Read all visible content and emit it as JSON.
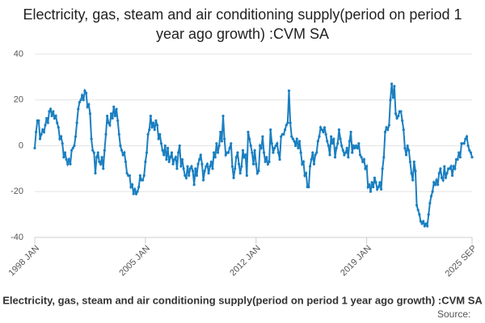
{
  "chart_data": {
    "type": "line",
    "title": "Electricity, gas, steam and air conditioning supply(period on period 1 year ago growth) :CVM SA",
    "source": "Source:",
    "categories": [
      "1998 JAN",
      null,
      null,
      null,
      null,
      null,
      null,
      null,
      null,
      null,
      null,
      null,
      null,
      null,
      null,
      null,
      null,
      null,
      null,
      null,
      null,
      null,
      null,
      null,
      null,
      null,
      null,
      null,
      null,
      null,
      null,
      null,
      null,
      null,
      null,
      null,
      null,
      null,
      null,
      null,
      null,
      null,
      null,
      null,
      null,
      null,
      null,
      null,
      null,
      null,
      null,
      null,
      null,
      null,
      null,
      null,
      null,
      null,
      null,
      null,
      null,
      null,
      null,
      null,
      null,
      null,
      null,
      null,
      null,
      null,
      null,
      null,
      null,
      null,
      null,
      null,
      null,
      null,
      null,
      null,
      null,
      null,
      null,
      null,
      "2005 JAN",
      null,
      null,
      null,
      null,
      null,
      null,
      null,
      null,
      null,
      null,
      null,
      null,
      null,
      null,
      null,
      null,
      null,
      null,
      null,
      null,
      null,
      null,
      null,
      null,
      null,
      null,
      null,
      null,
      null,
      null,
      null,
      null,
      null,
      null,
      null,
      null,
      null,
      null,
      null,
      null,
      null,
      null,
      null,
      null,
      null,
      null,
      null,
      null,
      null,
      null,
      null,
      null,
      null,
      null,
      null,
      null,
      null,
      null,
      null,
      null,
      null,
      null,
      null,
      null,
      null,
      null,
      null,
      null,
      null,
      null,
      null,
      null,
      null,
      null,
      null,
      null,
      null,
      null,
      null,
      null,
      null,
      null,
      null,
      "2012 JAN",
      null,
      null,
      null,
      null,
      null,
      null,
      null,
      null,
      null,
      null,
      null,
      null,
      null,
      null,
      null,
      null,
      null,
      null,
      null,
      null,
      null,
      null,
      null,
      null,
      null,
      null,
      null,
      null,
      null,
      null,
      null,
      null,
      null,
      null,
      null,
      null,
      null,
      null,
      null,
      null,
      null,
      null,
      null,
      null,
      null,
      null,
      null,
      null,
      null,
      null,
      null,
      null,
      null,
      null,
      null,
      null,
      null,
      null,
      null,
      null,
      null,
      null,
      null,
      null,
      null,
      null,
      null,
      null,
      null,
      null,
      null,
      null,
      null,
      null,
      null,
      null,
      null,
      null,
      null,
      null,
      null,
      null,
      null,
      "2019 JAN",
      null,
      null,
      null,
      null,
      null,
      null,
      null,
      null,
      null,
      null,
      null,
      null,
      null,
      null,
      null,
      null,
      null,
      null,
      null,
      null,
      null,
      null,
      null,
      null,
      null,
      null,
      null,
      null,
      null,
      null,
      null,
      null,
      null,
      null,
      null,
      null,
      null,
      null,
      null,
      null,
      null,
      null,
      null,
      null,
      null,
      null,
      null,
      null,
      null,
      null,
      null,
      null,
      null,
      null,
      null,
      null,
      null,
      null,
      null,
      null,
      null,
      null,
      null,
      null,
      null,
      null,
      null,
      null,
      null,
      null,
      null,
      null,
      null,
      null,
      null,
      null,
      null,
      null,
      null,
      "2025 SEP"
    ],
    "series": [
      {
        "name": "Electricity, gas, steam and air conditioning supply(period on period 1 year ago growth) :CVM SA",
        "color": "#1a7fc1",
        "values": [
          -1,
          6,
          11,
          11,
          3,
          5,
          7,
          6,
          9,
          12,
          10,
          15,
          16,
          13,
          15,
          12,
          13,
          10,
          8,
          3,
          4,
          1,
          -5,
          -3,
          -6,
          -8,
          -6,
          -8,
          -2,
          -1,
          0,
          4,
          10,
          16,
          19,
          20,
          22,
          20,
          24,
          23,
          17,
          18,
          14,
          3,
          -2,
          -3,
          -12,
          -5,
          -3,
          -7,
          -8,
          -5,
          -10,
          -2,
          5,
          13,
          10,
          9,
          14,
          12,
          17,
          13,
          16,
          11,
          5,
          0,
          -2,
          -4,
          -3,
          -7,
          -12,
          -13,
          -13,
          -18,
          -17,
          -21,
          -19,
          -21,
          -20,
          -18,
          -13,
          -15,
          -15,
          -13,
          -7,
          -3,
          5,
          7,
          13,
          8,
          10,
          7,
          11,
          9,
          3,
          5,
          1,
          -2,
          -4,
          0,
          -6,
          -1,
          -7,
          -5,
          -3,
          -8,
          -6,
          -5,
          -10,
          -3,
          0,
          -9,
          -6,
          -10,
          -13,
          -14,
          -9,
          -13,
          -10,
          -9,
          -11,
          -17,
          -10,
          -13,
          -8,
          -6,
          -4,
          -8,
          -15,
          -11,
          -9,
          -8,
          -12,
          -9,
          -7,
          -10,
          -3,
          -5,
          1,
          -3,
          0,
          6,
          2,
          13,
          3,
          -4,
          -3,
          -3,
          -1,
          1,
          -9,
          -14,
          -10,
          -5,
          -3,
          -8,
          -12,
          -9,
          -2,
          -5,
          -4,
          -13,
          6,
          3,
          0,
          -3,
          -8,
          -2,
          -8,
          -12,
          -11,
          0,
          -1,
          4,
          -3,
          -7,
          -5,
          -8,
          -7,
          7,
          1,
          -3,
          -1,
          0,
          1,
          -3,
          -6,
          4,
          5,
          5,
          7,
          9,
          10,
          24,
          10,
          4,
          3,
          2,
          0,
          3,
          -1,
          2,
          -3,
          -8,
          -7,
          -13,
          -12,
          -18,
          -18,
          -9,
          -6,
          -3,
          -8,
          -4,
          -3,
          2,
          4,
          8,
          7,
          6,
          8,
          5,
          2,
          0,
          -4,
          4,
          1,
          3,
          -5,
          -1,
          1,
          7,
          3,
          0,
          -2,
          -4,
          -3,
          -1,
          -5,
          2,
          6,
          -3,
          0,
          -1,
          0,
          -1,
          1,
          -4,
          -5,
          -7,
          -6,
          -10,
          -9,
          -18,
          -17,
          -20,
          -16,
          -18,
          -14,
          -16,
          -19,
          -18,
          -16,
          -19,
          -10,
          -5,
          6,
          8,
          7,
          9,
          20,
          27,
          21,
          26,
          14,
          12,
          13,
          15,
          15,
          11,
          7,
          -1,
          -4,
          0,
          -2,
          -7,
          -12,
          -15,
          -7,
          -11,
          -26,
          -28,
          -30,
          -33,
          -34,
          -33,
          -35,
          -34,
          -35,
          -30,
          -25,
          -22,
          -20,
          -16,
          -17,
          -15,
          -17,
          -12,
          -10,
          -14,
          -15,
          -9,
          -14,
          -12,
          -10,
          -10,
          -9,
          -13,
          -9,
          -10,
          -6,
          -6,
          -3,
          -5,
          1,
          1,
          1,
          3,
          4,
          0,
          -2,
          -3,
          -5
        ]
      }
    ],
    "ylim": [
      -40,
      40
    ],
    "yticks": [
      -40,
      -20,
      0,
      20,
      40
    ],
    "grid": true
  }
}
